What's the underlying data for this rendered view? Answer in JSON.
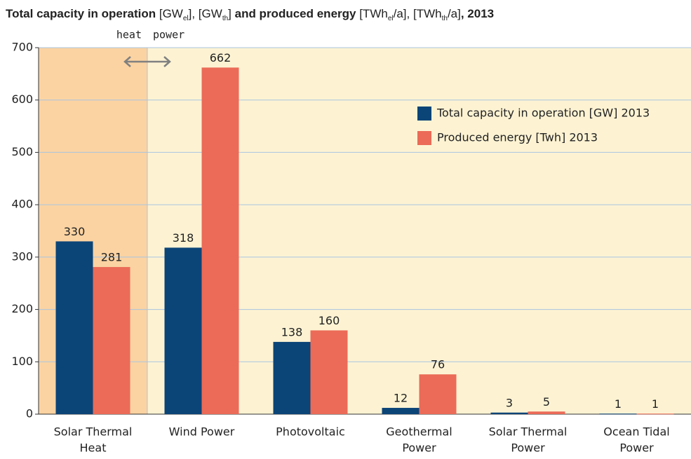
{
  "chart_data": {
    "type": "bar",
    "title_parts": [
      {
        "text": "Total capacity in operation",
        "style": "bold"
      },
      {
        "text": " [GW",
        "style": "normal"
      },
      {
        "text": "el",
        "style": "sub"
      },
      {
        "text": "], [GW",
        "style": "normal"
      },
      {
        "text": "th",
        "style": "sub"
      },
      {
        "text": "]",
        "style": "normal"
      },
      {
        "text": " and produced energy",
        "style": "bold"
      },
      {
        "text": " [TWh",
        "style": "normal"
      },
      {
        "text": "el",
        "style": "sub"
      },
      {
        "text": "/a], [TWh",
        "style": "normal"
      },
      {
        "text": "th",
        "style": "sub"
      },
      {
        "text": "/a]",
        "style": "normal"
      },
      {
        "text": ", 2013",
        "style": "bold"
      }
    ],
    "annotations": [
      "heat",
      "power"
    ],
    "categories": [
      [
        "Solar Thermal",
        "Heat"
      ],
      [
        "Wind Power"
      ],
      [
        "Photovoltaic"
      ],
      [
        "Geothermal",
        "Power"
      ],
      [
        "Solar Thermal",
        "Power"
      ],
      [
        "Ocean Tidal",
        "Power"
      ]
    ],
    "series": [
      {
        "name": "Total capacity in operation [GW] 2013",
        "color": "#0b4477",
        "values": [
          330,
          318,
          138,
          12,
          3,
          1
        ]
      },
      {
        "name": "Produced energy [Twh] 2013",
        "color": "#eb6b58",
        "values": [
          281,
          662,
          160,
          76,
          5,
          1
        ]
      }
    ],
    "ylim": [
      0,
      700
    ],
    "yticks": [
      0,
      100,
      200,
      300,
      400,
      500,
      600,
      700
    ],
    "grid": true,
    "legend": "upper right",
    "plot_color": "#fdf3d3",
    "highlight_color": "#fbd3a2"
  }
}
